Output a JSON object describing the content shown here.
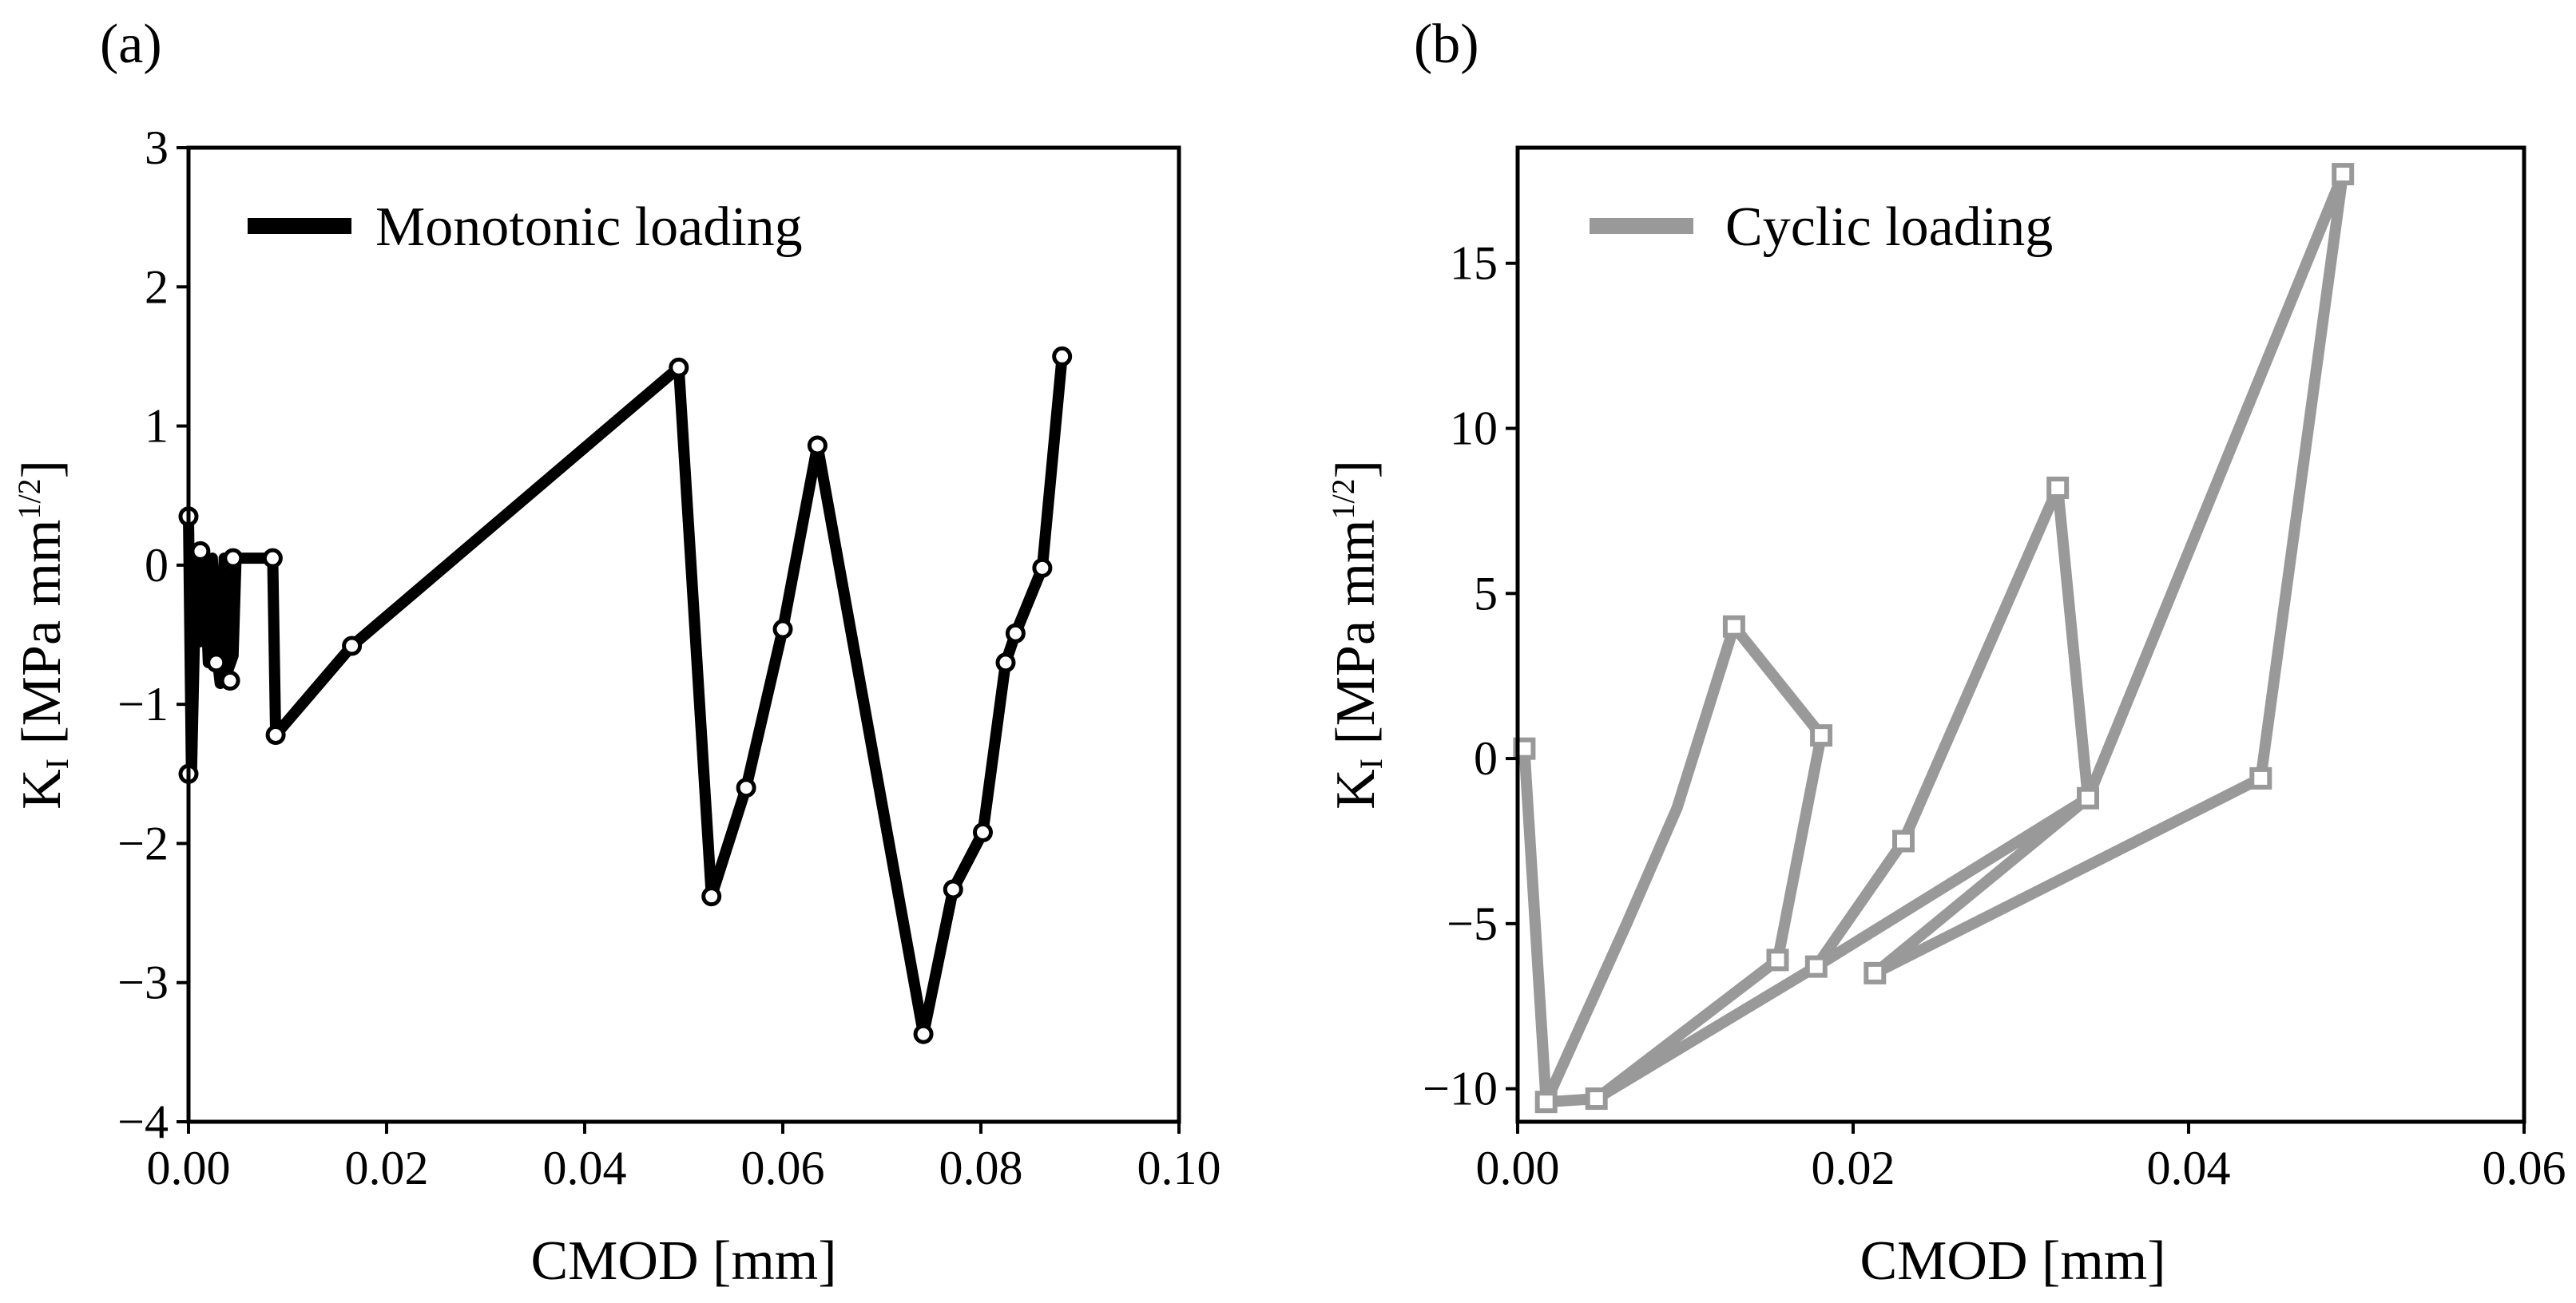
{
  "chart_data": [
    {
      "type": "line",
      "panel_label": "(a)",
      "xlabel": "CMOD [mm]",
      "ylabel_main": "K",
      "ylabel_sub": "I",
      "ylabel_unit": " [MPa mm",
      "ylabel_sup": "1/2",
      "ylabel_close": "]",
      "xlim": [
        0.0,
        0.1
      ],
      "ylim": [
        -4,
        3
      ],
      "xticks": [
        0.0,
        0.02,
        0.04,
        0.06,
        0.08,
        0.1
      ],
      "xtick_labels": [
        "0.00",
        "0.02",
        "0.04",
        "0.06",
        "0.08",
        "0.10"
      ],
      "yticks": [
        -4,
        -3,
        -2,
        -1,
        0,
        1,
        2,
        3
      ],
      "ytick_labels": [
        "−4",
        "−3",
        "−2",
        "−1",
        "0",
        "1",
        "2",
        "3"
      ],
      "grid": false,
      "legend_position": "top-left",
      "series": [
        {
          "name": "Monotonic loading",
          "color": "#000000",
          "marker": "circle",
          "x": [
            0.0,
            0.0003,
            0.0008,
            0.0012,
            0.0016,
            0.002,
            0.0024,
            0.0028,
            0.0032,
            0.0036,
            0.004,
            0.0045,
            0.0048,
            0.0085,
            0.0088,
            0.0165,
            0.0495,
            0.0528,
            0.0563,
            0.06,
            0.0635,
            0.0742,
            0.0772,
            0.0802,
            0.0825,
            0.0835,
            0.0862,
            0.0882
          ],
          "y": [
            0.35,
            -1.5,
            0.12,
            -0.55,
            0.1,
            -0.7,
            0.05,
            -0.6,
            -0.85,
            0.05,
            -0.75,
            -0.65,
            0.05,
            0.05,
            -1.22,
            -0.58,
            1.42,
            -2.38,
            -1.6,
            -0.46,
            0.86,
            -3.37,
            -2.33,
            -1.92,
            -0.7,
            -0.49,
            -0.02,
            1.5
          ],
          "marker_points": [
            [
              0.0,
              0.35
            ],
            [
              0.0,
              -1.5
            ],
            [
              0.0012,
              0.1
            ],
            [
              0.0028,
              -0.7
            ],
            [
              0.0042,
              -0.83
            ],
            [
              0.0045,
              0.05
            ],
            [
              0.0085,
              0.05
            ],
            [
              0.0088,
              -1.22
            ],
            [
              0.0165,
              -0.58
            ],
            [
              0.0495,
              1.42
            ],
            [
              0.0528,
              -2.38
            ],
            [
              0.0563,
              -1.6
            ],
            [
              0.06,
              -0.46
            ],
            [
              0.0635,
              0.86
            ],
            [
              0.0742,
              -3.37
            ],
            [
              0.0772,
              -2.33
            ],
            [
              0.0802,
              -1.92
            ],
            [
              0.0825,
              -0.7
            ],
            [
              0.0835,
              -0.49
            ],
            [
              0.0862,
              -0.02
            ],
            [
              0.0882,
              1.5
            ]
          ]
        }
      ]
    },
    {
      "type": "line",
      "panel_label": "(b)",
      "xlabel": "CMOD [mm]",
      "ylabel_main": "K",
      "ylabel_sub": "I",
      "ylabel_unit": " [MPa mm",
      "ylabel_sup": "1/2",
      "ylabel_close": "]",
      "xlim": [
        0.0,
        0.06
      ],
      "ylim": [
        -11,
        18.5
      ],
      "xticks": [
        0.0,
        0.02,
        0.04,
        0.06
      ],
      "xtick_labels": [
        "0.00",
        "0.02",
        "0.04",
        "0.06"
      ],
      "yticks": [
        -10,
        -5,
        0,
        5,
        10,
        15
      ],
      "ytick_labels": [
        "−10",
        "−5",
        "0",
        "5",
        "10",
        "15"
      ],
      "grid": false,
      "legend_position": "top-left",
      "series": [
        {
          "name": "Cyclic loading",
          "color": "#999999",
          "marker": "square",
          "x": [
            0.0004,
            0.0017,
            0.0047,
            0.0155,
            0.0181,
            0.0129,
            0.0095,
            0.0065,
            0.0017,
            0.0047,
            0.0178,
            0.023,
            0.0322,
            0.034,
            0.0213,
            0.0443,
            0.0492,
            0.034,
            0.0178
          ],
          "y": [
            0.3,
            -10.4,
            -10.3,
            -6.1,
            0.7,
            4.0,
            -1.5,
            -5.0,
            -10.4,
            -10.3,
            -6.3,
            -2.5,
            8.2,
            -1.2,
            -6.5,
            -0.6,
            17.7,
            -1.2,
            -6.3
          ],
          "marker_points": [
            [
              0.0004,
              0.3
            ],
            [
              0.0017,
              -10.4
            ],
            [
              0.0047,
              -10.3
            ],
            [
              0.0155,
              -6.1
            ],
            [
              0.0181,
              0.7
            ],
            [
              0.0129,
              4.0
            ],
            [
              0.0178,
              -6.3
            ],
            [
              0.023,
              -2.5
            ],
            [
              0.0322,
              8.2
            ],
            [
              0.034,
              -1.2
            ],
            [
              0.0213,
              -6.5
            ],
            [
              0.0443,
              -0.6
            ],
            [
              0.0492,
              17.7
            ]
          ]
        }
      ]
    }
  ]
}
